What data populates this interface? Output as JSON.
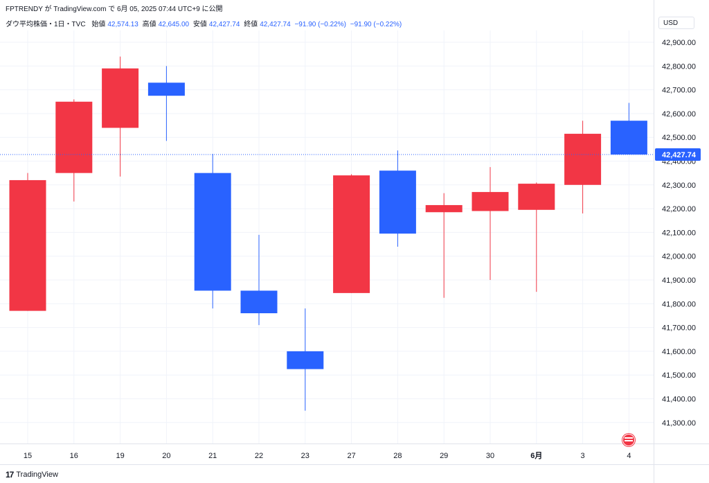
{
  "header": {
    "publish_line": "FPTRENDY が TradingView.com で 6月 05, 2025 07:44 UTC+9 に公開"
  },
  "ohlc": {
    "symbol": "ダウ平均株価・1日・TVC",
    "open_label": "始値",
    "open_value": "42,574.13",
    "high_label": "高値",
    "high_value": "42,645.00",
    "low_label": "安値",
    "low_value": "42,427.74",
    "close_label": "終値",
    "close_value": "42,427.74",
    "change": "−91.90 (−0.22%)",
    "change2": "−91.90 (−0.22%)"
  },
  "currency": "USD",
  "footer": {
    "brand": "TradingView",
    "logo": "17"
  },
  "colors": {
    "up": "#f23645",
    "down": "#2962ff",
    "grid": "#f0f3fa",
    "price_line": "#2962ff"
  },
  "chart_data": {
    "type": "candlestick",
    "categories": [
      "15",
      "16",
      "19",
      "20",
      "21",
      "22",
      "23",
      "27",
      "28",
      "29",
      "30",
      "6月",
      "3",
      "4"
    ],
    "bold_categories": [
      "6月"
    ],
    "candles": [
      {
        "open": 41770,
        "high": 42350,
        "low": 41770,
        "close": 42320
      },
      {
        "open": 42350,
        "high": 42660,
        "low": 42230,
        "close": 42650
      },
      {
        "open": 42540,
        "high": 42840,
        "low": 42335,
        "close": 42790
      },
      {
        "open": 42730,
        "high": 42800,
        "low": 42485,
        "close": 42675
      },
      {
        "open": 42350,
        "high": 42430,
        "low": 41780,
        "close": 41855
      },
      {
        "open": 41855,
        "high": 42090,
        "low": 41710,
        "close": 41760
      },
      {
        "open": 41600,
        "high": 41780,
        "low": 41350,
        "close": 41525
      },
      {
        "open": 41845,
        "high": 42345,
        "low": 41845,
        "close": 42340
      },
      {
        "open": 42360,
        "high": 42445,
        "low": 42040,
        "close": 42095
      },
      {
        "open": 42185,
        "high": 42265,
        "low": 41825,
        "close": 42215
      },
      {
        "open": 42190,
        "high": 42375,
        "low": 41900,
        "close": 42270
      },
      {
        "open": 42195,
        "high": 42310,
        "low": 41850,
        "close": 42305
      },
      {
        "open": 42300,
        "high": 42570,
        "low": 42180,
        "close": 42515
      },
      {
        "open": 42570,
        "high": 42645,
        "low": 42427.74,
        "close": 42427.74
      }
    ],
    "y_ticks": [
      41300,
      41400,
      41500,
      41600,
      41700,
      41800,
      41900,
      42000,
      42100,
      42200,
      42300,
      42400,
      42500,
      42600,
      42700,
      42800,
      42900
    ],
    "y_tick_labels": [
      "41,300.00",
      "41,400.00",
      "41,500.00",
      "41,600.00",
      "41,700.00",
      "41,800.00",
      "41,900.00",
      "42,000.00",
      "42,100.00",
      "42,200.00",
      "42,300.00",
      "42,400.00",
      "42,500.00",
      "42,600.00",
      "42,700.00",
      "42,800.00",
      "42,900.00"
    ],
    "last_price": 42427.74,
    "last_price_label": "42,427.74",
    "grid": true
  }
}
